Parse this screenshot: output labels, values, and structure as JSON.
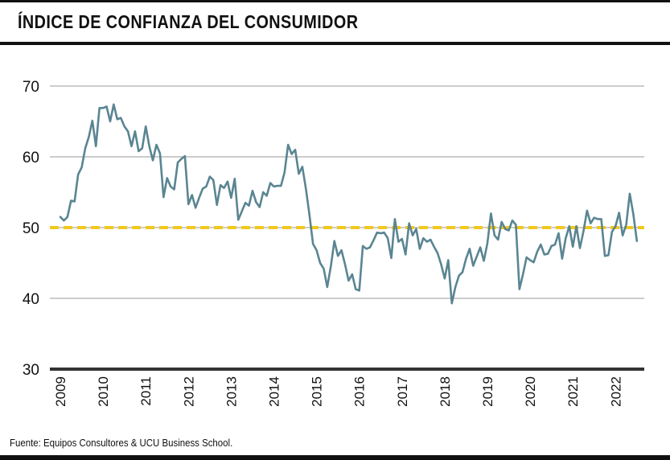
{
  "header": {
    "title": "ÍNDICE DE CONFIANZA DEL CONSUMIDOR"
  },
  "footer": {
    "source": "Fuente: Equipos Consultores & UCU Business School."
  },
  "colors": {
    "line": "#5a8592",
    "reference": "#f2c81c",
    "grid": "#9a9a9a",
    "axis": "#333333",
    "text": "#111111"
  },
  "chart_data": {
    "type": "line",
    "title": "ÍNDICE DE CONFIANZA DEL CONSUMIDOR",
    "xlabel": "",
    "ylabel": "",
    "ylim": [
      30,
      70
    ],
    "yticks": [
      "70",
      "60",
      "50",
      "40",
      "30"
    ],
    "xticks": [
      "2009",
      "2010",
      "2011",
      "2012",
      "2013",
      "2014",
      "2015",
      "2016",
      "2017",
      "2018",
      "2019",
      "2020",
      "2021",
      "2022"
    ],
    "x_start": 2009.0,
    "x_step": 0.08333,
    "reference_line": {
      "value": 50,
      "style": "dashed"
    },
    "grid": true,
    "series": [
      {
        "name": "Índice de Confianza del Consumidor",
        "values": [
          51.5,
          51.0,
          51.5,
          53.8,
          53.7,
          57.5,
          58.5,
          61.2,
          62.8,
          65.1,
          61.5,
          66.9,
          66.9,
          67.1,
          65.0,
          67.4,
          65.3,
          65.5,
          64.3,
          63.6,
          61.5,
          63.6,
          60.8,
          61.2,
          64.3,
          61.5,
          59.5,
          61.7,
          60.5,
          54.3,
          57.0,
          55.8,
          55.4,
          59.2,
          59.7,
          60.1,
          53.3,
          54.6,
          52.8,
          54.2,
          55.5,
          55.8,
          57.2,
          56.7,
          53.2,
          56.0,
          55.6,
          56.5,
          54.2,
          56.9,
          51.1,
          52.3,
          53.5,
          53.1,
          55.2,
          53.6,
          52.9,
          55.0,
          54.5,
          56.3,
          55.8,
          55.9,
          55.9,
          57.8,
          61.7,
          60.4,
          61.0,
          57.6,
          58.6,
          55.5,
          51.8,
          47.7,
          46.8,
          45.0,
          44.2,
          41.6,
          44.5,
          48.1,
          46.0,
          46.8,
          44.8,
          42.5,
          43.4,
          41.3,
          41.1,
          47.4,
          47.0,
          47.2,
          48.2,
          49.3,
          49.2,
          49.3,
          48.5,
          45.7,
          51.2,
          48.0,
          48.4,
          46.2,
          50.6,
          48.9,
          49.8,
          47.0,
          48.5,
          48.0,
          48.3,
          47.3,
          46.4,
          44.8,
          42.8,
          45.4,
          39.3,
          41.6,
          43.2,
          43.7,
          45.6,
          47.0,
          44.6,
          45.9,
          47.2,
          45.3,
          47.8,
          52.0,
          48.9,
          48.3,
          50.8,
          49.8,
          49.6,
          51.0,
          50.4,
          41.3,
          43.4,
          45.8,
          45.4,
          45.1,
          46.6,
          47.6,
          46.2,
          46.3,
          47.4,
          47.6,
          49.2,
          45.6,
          48.5,
          50.2,
          47.3,
          50.2,
          47.1,
          49.5,
          52.4,
          50.6,
          51.4,
          51.2,
          51.2,
          46.0,
          46.1,
          49.4,
          50.2,
          52.1,
          48.9,
          50.4,
          54.8,
          51.9,
          48.1
        ]
      }
    ]
  }
}
